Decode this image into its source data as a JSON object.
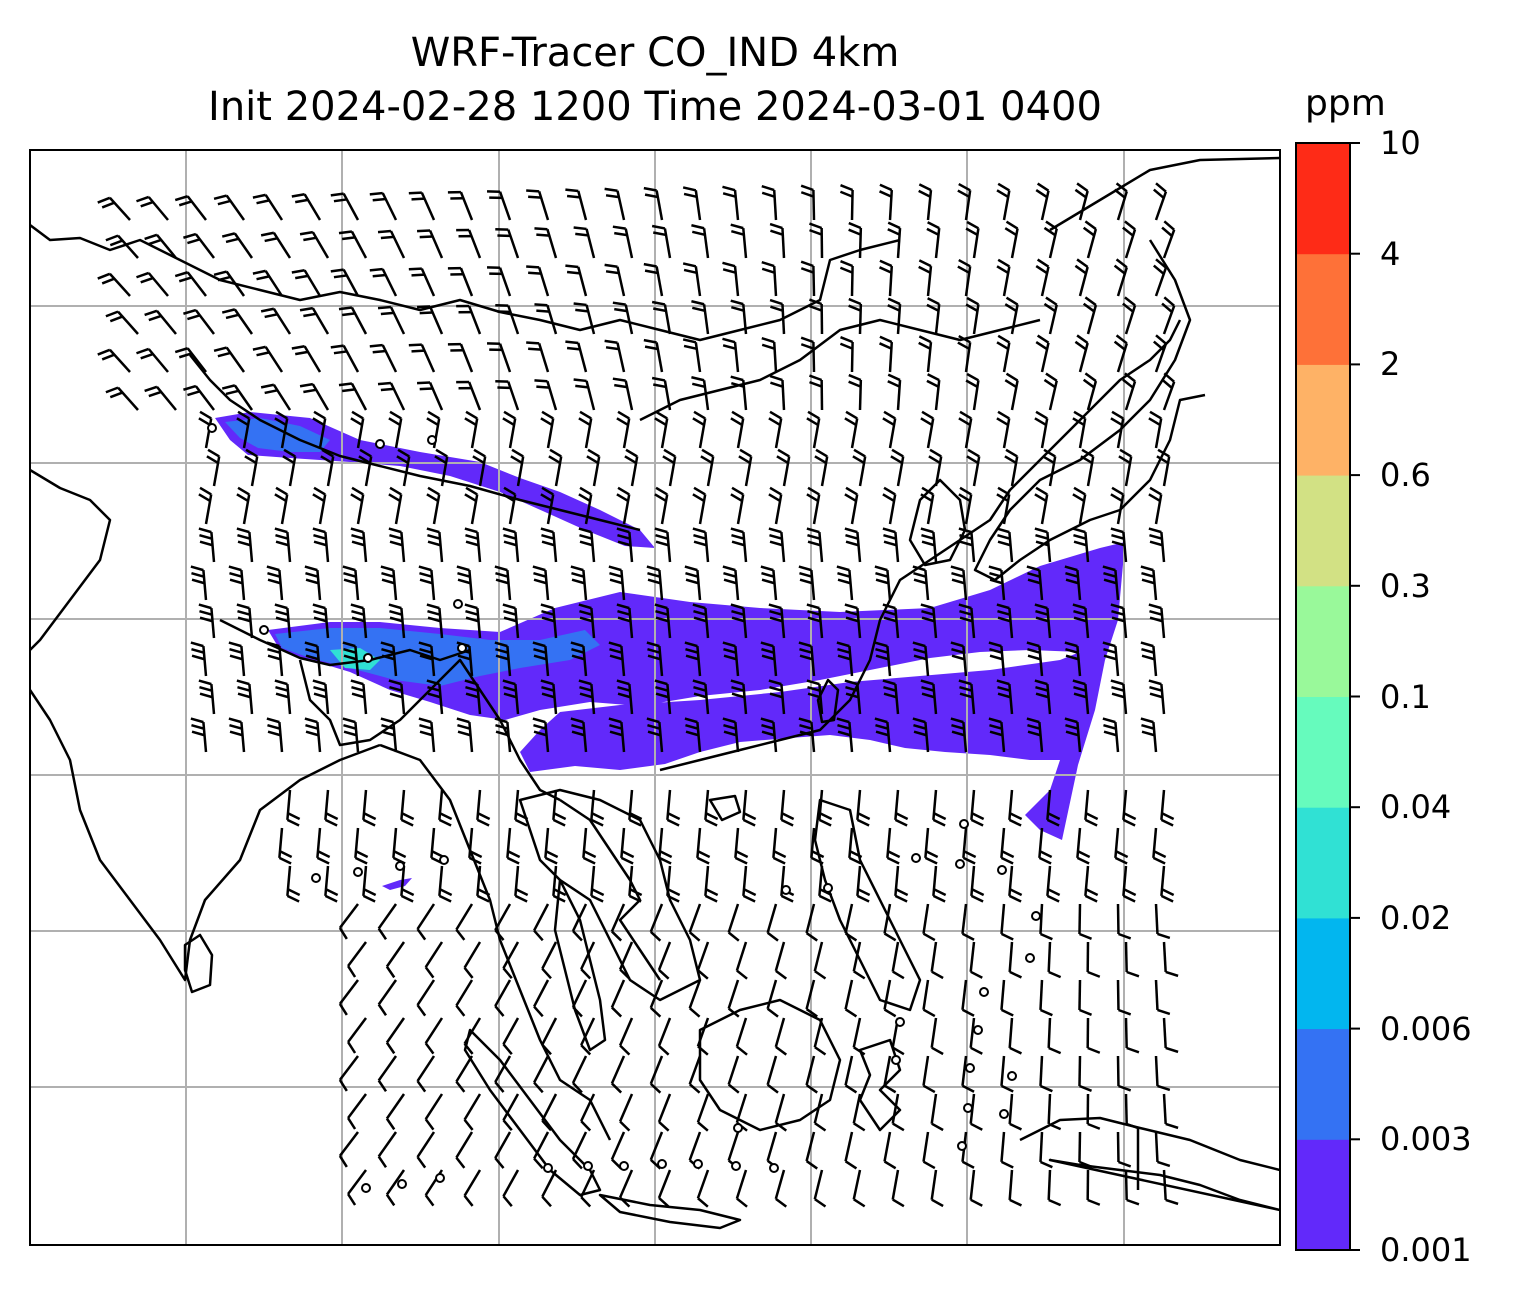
{
  "title": {
    "line1": "WRF-Tracer CO_IND 4km",
    "line2": "Init 2024-02-28 1200 Time 2024-03-01 0400"
  },
  "colorbar": {
    "unit": "ppm",
    "levels": [
      "0.001",
      "0.003",
      "0.006",
      "0.02",
      "0.04",
      "0.1",
      "0.3",
      "0.6",
      "2",
      "4",
      "10"
    ],
    "colors": [
      "#6229fa",
      "#3472f3",
      "#02b6ef",
      "#30e1d4",
      "#66fbbd",
      "#99f99a",
      "#d2e184",
      "#feb266",
      "#fe7138",
      "#fe2b17"
    ]
  },
  "map": {
    "gridlines": "on",
    "grid_color": "#b0b0b0",
    "coastline_color": "#000000",
    "plume_main_color": "#6229fa",
    "plume_core_color": "#3472f3",
    "plume_peak_color": "#30e1d4",
    "wind_barb_color": "#000000"
  }
}
